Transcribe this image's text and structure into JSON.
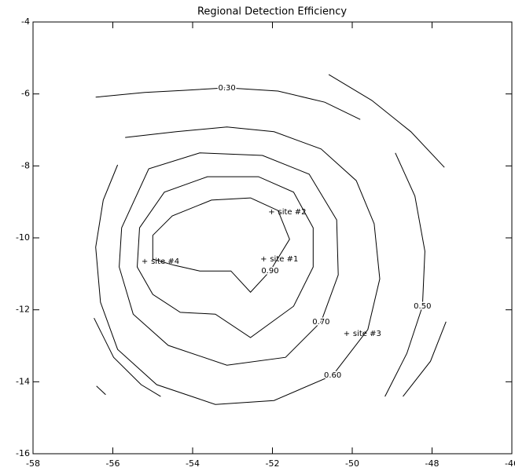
{
  "chart_data": {
    "type": "contour",
    "title": "Regional Detection Efficiency",
    "xlim": [
      -58,
      -46
    ],
    "ylim": [
      -16,
      -4
    ],
    "xticks": [
      -58,
      -56,
      -54,
      -52,
      -50,
      -48,
      -46
    ],
    "yticks": [
      -16,
      -14,
      -12,
      -10,
      -8,
      -6,
      -4
    ],
    "color": "#000000",
    "contours": [
      {
        "label": "0.90",
        "x": [
          -55.0,
          -54.51,
          -53.53,
          -52.55,
          -51.86,
          -51.57,
          -52.06,
          -52.55,
          -53.04,
          -53.82,
          -54.47,
          -55.0,
          -55.0
        ],
        "y": [
          -9.93,
          -9.39,
          -8.95,
          -8.89,
          -9.24,
          -10.04,
          -10.92,
          -11.51,
          -10.92,
          -10.92,
          -10.76,
          -10.59,
          -9.93
        ]
      },
      {
        "x": [
          -55.33,
          -54.71,
          -53.63,
          -52.35,
          -51.47,
          -50.98,
          -50.98,
          -51.47,
          -52.55,
          -53.43,
          -54.31,
          -55.0,
          -55.39,
          -55.33
        ],
        "y": [
          -9.72,
          -8.73,
          -8.3,
          -8.3,
          -8.73,
          -9.72,
          -10.81,
          -11.9,
          -12.77,
          -12.12,
          -12.07,
          -11.57,
          -10.81,
          -9.72
        ]
      },
      {
        "label": "0.70",
        "x": [
          -55.78,
          -55.1,
          -53.82,
          -52.25,
          -51.08,
          -50.39,
          -50.35,
          -50.78,
          -51.67,
          -53.14,
          -54.61,
          -55.49,
          -55.84,
          -55.78
        ],
        "y": [
          -9.72,
          -8.08,
          -7.64,
          -7.71,
          -8.23,
          -9.5,
          -11.03,
          -12.33,
          -13.32,
          -13.54,
          -12.99,
          -12.12,
          -10.81,
          -9.72
        ]
      },
      {
        "label": "0.60",
        "x": [
          -55.69,
          -54.41,
          -53.14,
          -51.96,
          -50.78,
          -49.9,
          -49.45,
          -49.31,
          -49.61,
          -50.49,
          -51.96,
          -53.43,
          -54.9,
          -55.88,
          -56.31,
          -56.43,
          -56.24,
          -55.88
        ],
        "y": [
          -7.21,
          -7.05,
          -6.92,
          -7.05,
          -7.53,
          -8.41,
          -9.61,
          -11.14,
          -12.55,
          -13.82,
          -14.52,
          -14.63,
          -14.08,
          -13.1,
          -11.79,
          -10.26,
          -8.95,
          -7.97
        ]
      },
      {
        "label": "0.30",
        "x": [
          -56.43,
          -55.2,
          -54.22,
          -53.14,
          -51.86,
          -50.69,
          -49.8
        ],
        "y": [
          -6.09,
          -5.96,
          -5.9,
          -5.83,
          -5.92,
          -6.23,
          -6.71
        ]
      },
      {
        "label": "0.50",
        "x": [
          -48.92,
          -48.43,
          -48.18,
          -48.24,
          -48.63,
          -49.18
        ],
        "y": [
          -7.64,
          -8.84,
          -10.37,
          -11.9,
          -13.21,
          -14.41
        ]
      },
      {
        "x": [
          -50.59,
          -49.51,
          -48.53,
          -47.69
        ],
        "y": [
          -5.46,
          -6.18,
          -7.05,
          -8.04
        ]
      },
      {
        "x": [
          -47.65,
          -48.04,
          -48.73
        ],
        "y": [
          -12.33,
          -13.43,
          -14.41
        ]
      },
      {
        "x": [
          -56.47,
          -55.98,
          -55.29,
          -54.8
        ],
        "y": [
          -12.23,
          -13.32,
          -14.08,
          -14.41
        ]
      },
      {
        "x": [
          -56.41,
          -56.18
        ],
        "y": [
          -14.12,
          -14.36
        ]
      }
    ],
    "sites": [
      {
        "label": "site #4",
        "x": -55.2,
        "y": -10.65
      },
      {
        "label": "site #1",
        "x": -52.22,
        "y": -10.59
      },
      {
        "label": "site #2",
        "x": -52.02,
        "y": -9.28
      },
      {
        "label": "site #3",
        "x": -50.14,
        "y": -12.66
      }
    ]
  }
}
